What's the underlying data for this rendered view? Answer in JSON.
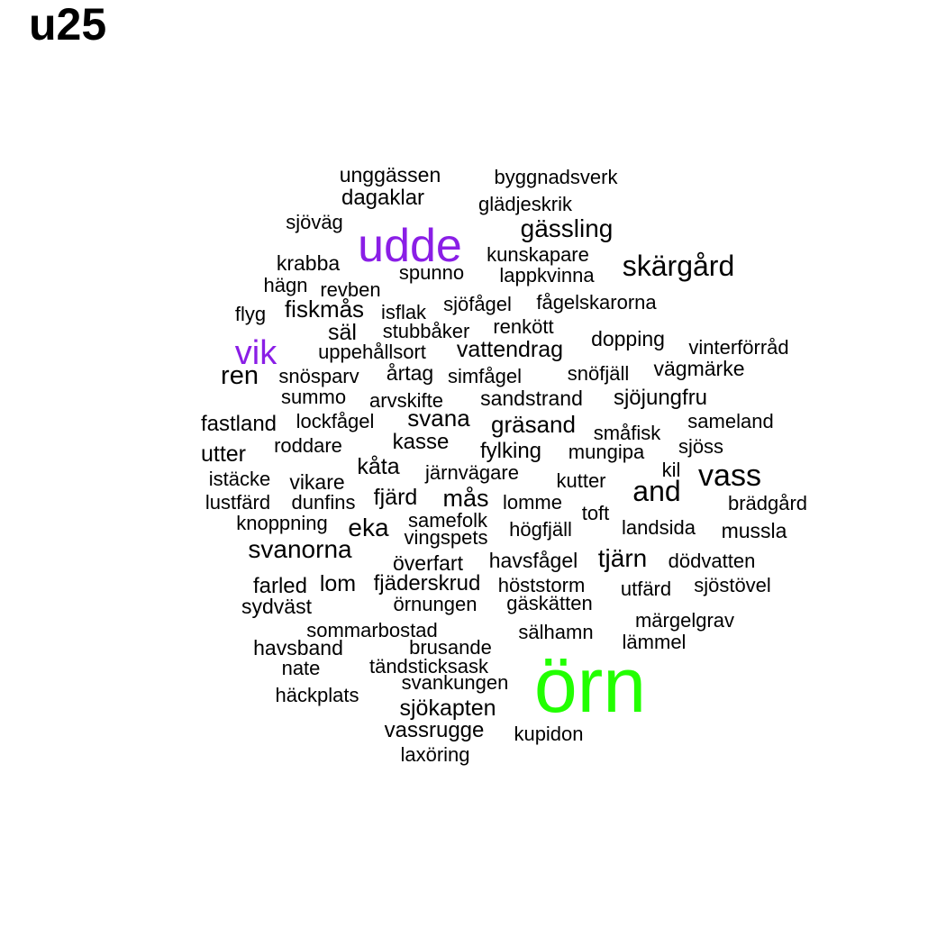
{
  "title": "u25",
  "chart_data": {
    "type": "wordcloud",
    "title": "u25",
    "colors": {
      "default": "#000000",
      "mid": "#8a1ee6",
      "top": "#22ff00"
    },
    "words": [
      {
        "text": "örn",
        "color": "top"
      },
      {
        "text": "udde",
        "color": "mid"
      },
      {
        "text": "vik",
        "color": "mid"
      },
      {
        "text": "unggässen"
      },
      {
        "text": "byggnadsverk"
      },
      {
        "text": "dagaklar"
      },
      {
        "text": "glädjeskrik"
      },
      {
        "text": "sjöväg"
      },
      {
        "text": "gässling"
      },
      {
        "text": "kunskapare"
      },
      {
        "text": "krabba"
      },
      {
        "text": "skärgård"
      },
      {
        "text": "spunno"
      },
      {
        "text": "lappkvinna"
      },
      {
        "text": "hägn"
      },
      {
        "text": "revben"
      },
      {
        "text": "fågelskarorna"
      },
      {
        "text": "sjöfågel"
      },
      {
        "text": "flyg"
      },
      {
        "text": "fiskmås"
      },
      {
        "text": "isflak"
      },
      {
        "text": "renkött"
      },
      {
        "text": "säl"
      },
      {
        "text": "stubbåker"
      },
      {
        "text": "dopping"
      },
      {
        "text": "vinterförråd"
      },
      {
        "text": "uppehållsort"
      },
      {
        "text": "vattendrag"
      },
      {
        "text": "ren"
      },
      {
        "text": "snösparv"
      },
      {
        "text": "årtag"
      },
      {
        "text": "simfågel"
      },
      {
        "text": "snöfjäll"
      },
      {
        "text": "vägmärke"
      },
      {
        "text": "summo"
      },
      {
        "text": "arvskifte"
      },
      {
        "text": "sandstrand"
      },
      {
        "text": "sjöjungfru"
      },
      {
        "text": "fastland"
      },
      {
        "text": "lockfågel"
      },
      {
        "text": "svana"
      },
      {
        "text": "gräsand"
      },
      {
        "text": "sameland"
      },
      {
        "text": "småfisk"
      },
      {
        "text": "roddare"
      },
      {
        "text": "kasse"
      },
      {
        "text": "sjöss"
      },
      {
        "text": "utter"
      },
      {
        "text": "fylking"
      },
      {
        "text": "mungipa"
      },
      {
        "text": "kåta"
      },
      {
        "text": "kil"
      },
      {
        "text": "vass"
      },
      {
        "text": "istäcke"
      },
      {
        "text": "järnvägare"
      },
      {
        "text": "kutter"
      },
      {
        "text": "vikare"
      },
      {
        "text": "and"
      },
      {
        "text": "lustfärd"
      },
      {
        "text": "dunfins"
      },
      {
        "text": "fjärd"
      },
      {
        "text": "mås"
      },
      {
        "text": "lomme"
      },
      {
        "text": "brädgård"
      },
      {
        "text": "toft"
      },
      {
        "text": "knoppning"
      },
      {
        "text": "samefolk"
      },
      {
        "text": "eka"
      },
      {
        "text": "högfjäll"
      },
      {
        "text": "landsida"
      },
      {
        "text": "mussla"
      },
      {
        "text": "vingspets"
      },
      {
        "text": "svanorna"
      },
      {
        "text": "överfart"
      },
      {
        "text": "havsfågel"
      },
      {
        "text": "tjärn"
      },
      {
        "text": "dödvatten"
      },
      {
        "text": "farled"
      },
      {
        "text": "lom"
      },
      {
        "text": "fjäderskrud"
      },
      {
        "text": "höststorm"
      },
      {
        "text": "utfärd"
      },
      {
        "text": "sjöstövel"
      },
      {
        "text": "sydväst"
      },
      {
        "text": "örnungen"
      },
      {
        "text": "gäskätten"
      },
      {
        "text": "märgelgrav"
      },
      {
        "text": "sommarbostad"
      },
      {
        "text": "sälhamn"
      },
      {
        "text": "lämmel"
      },
      {
        "text": "havsband"
      },
      {
        "text": "brusande"
      },
      {
        "text": "nate"
      },
      {
        "text": "tändsticksask"
      },
      {
        "text": "svankungen"
      },
      {
        "text": "häckplats"
      },
      {
        "text": "sjökapten"
      },
      {
        "text": "vassrugge"
      },
      {
        "text": "kupidon"
      },
      {
        "text": "laxöring"
      }
    ]
  }
}
